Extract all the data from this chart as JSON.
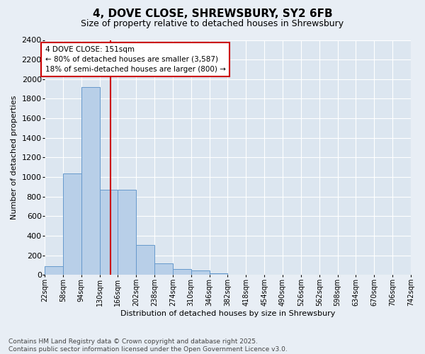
{
  "title": "4, DOVE CLOSE, SHREWSBURY, SY2 6FB",
  "subtitle": "Size of property relative to detached houses in Shrewsbury",
  "xlabel": "Distribution of detached houses by size in Shrewsbury",
  "ylabel": "Number of detached properties",
  "bar_left_edges": [
    22,
    58,
    94,
    130,
    166,
    202,
    238,
    274,
    310,
    346,
    382,
    418,
    454,
    490,
    526,
    562,
    598,
    634,
    670,
    706
  ],
  "bar_right_edges": [
    58,
    94,
    130,
    166,
    202,
    238,
    274,
    310,
    346,
    382,
    418,
    454,
    490,
    526,
    562,
    598,
    634,
    670,
    706,
    742
  ],
  "bar_heights": [
    90,
    1035,
    1920,
    870,
    870,
    310,
    120,
    60,
    45,
    20,
    0,
    0,
    0,
    0,
    0,
    0,
    0,
    0,
    0,
    0
  ],
  "bar_color": "#b8cfe8",
  "bar_edgecolor": "#6699cc",
  "vline_x": 151,
  "vline_color": "#cc0000",
  "annotation_text": "4 DOVE CLOSE: 151sqm\n← 80% of detached houses are smaller (3,587)\n18% of semi-detached houses are larger (800) →",
  "annotation_box_edgecolor": "#cc0000",
  "annotation_box_facecolor": "#ffffff",
  "ylim": [
    0,
    2400
  ],
  "yticks": [
    0,
    200,
    400,
    600,
    800,
    1000,
    1200,
    1400,
    1600,
    1800,
    2000,
    2200,
    2400
  ],
  "xlim": [
    22,
    742
  ],
  "tick_labels": [
    "22sqm",
    "58sqm",
    "94sqm",
    "130sqm",
    "166sqm",
    "202sqm",
    "238sqm",
    "274sqm",
    "310sqm",
    "346sqm",
    "382sqm",
    "418sqm",
    "454sqm",
    "490sqm",
    "526sqm",
    "562sqm",
    "598sqm",
    "634sqm",
    "670sqm",
    "706sqm",
    "742sqm"
  ],
  "tick_positions": [
    22,
    58,
    94,
    130,
    166,
    202,
    238,
    274,
    310,
    346,
    382,
    418,
    454,
    490,
    526,
    562,
    598,
    634,
    670,
    706,
    742
  ],
  "bg_color": "#e8eef5",
  "plot_bg_color": "#dce6f0",
  "grid_color": "#ffffff",
  "footer_line1": "Contains HM Land Registry data © Crown copyright and database right 2025.",
  "footer_line2": "Contains public sector information licensed under the Open Government Licence v3.0.",
  "title_fontsize": 11,
  "subtitle_fontsize": 9,
  "ylabel_fontsize": 8,
  "xlabel_fontsize": 8,
  "ytick_fontsize": 8,
  "xtick_fontsize": 7,
  "annotation_fontsize": 7.5,
  "footer_fontsize": 6.5
}
